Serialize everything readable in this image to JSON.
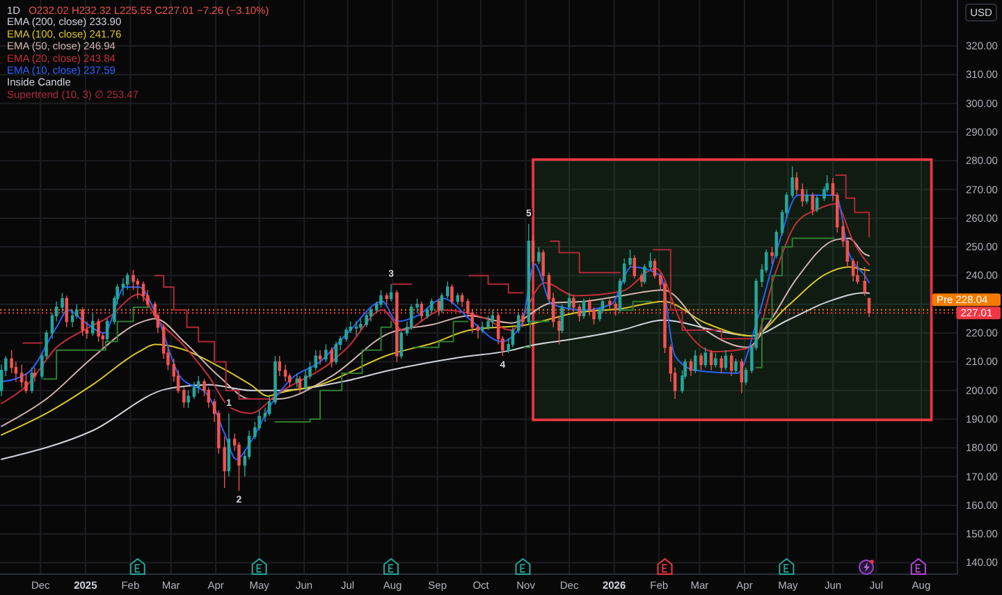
{
  "chart_data": {
    "type": "candlestick",
    "title": "1D",
    "subtitle": "O232.02 H232.32 L225.55 C227.01 −7.26 (−3.10%)",
    "ylabel": "USD",
    "x": [
      "2024-11-04",
      "2024-11-07",
      "2024-11-11",
      "2024-11-14",
      "2024-11-18",
      "2024-11-21",
      "2024-11-25",
      "2024-11-27",
      "2024-12-02",
      "2024-12-05",
      "2024-12-09",
      "2024-12-12",
      "2024-12-16",
      "2024-12-19",
      "2024-12-23",
      "2024-12-26",
      "2024-12-30",
      "2025-01-02",
      "2025-01-06",
      "2025-01-10",
      "2025-01-13",
      "2025-01-16",
      "2025-01-21",
      "2025-01-23",
      "2025-01-27",
      "2025-01-30",
      "2025-02-03",
      "2025-02-06",
      "2025-02-10",
      "2025-02-13",
      "2025-02-18",
      "2025-02-20",
      "2025-02-24",
      "2025-02-27",
      "2025-03-03",
      "2025-03-06",
      "2025-03-10",
      "2025-03-13",
      "2025-03-17",
      "2025-03-20",
      "2025-03-24",
      "2025-03-27",
      "2025-03-31",
      "2025-04-03",
      "2025-04-07",
      "2025-04-10",
      "2025-04-14",
      "2025-04-17",
      "2025-04-21",
      "2025-04-24",
      "2025-04-28",
      "2025-05-01",
      "2025-05-05",
      "2025-05-08",
      "2025-05-12",
      "2025-05-15",
      "2025-05-19",
      "2025-05-22",
      "2025-05-27",
      "2025-05-29",
      "2025-06-02",
      "2025-06-05",
      "2025-06-09",
      "2025-06-12",
      "2025-06-16",
      "2025-06-20",
      "2025-06-23",
      "2025-06-26",
      "2025-06-30",
      "2025-07-03",
      "2025-07-07",
      "2025-07-10",
      "2025-07-14",
      "2025-07-17",
      "2025-07-21",
      "2025-07-24",
      "2025-07-28",
      "2025-07-31",
      "2025-08-04",
      "2025-08-07",
      "2025-08-11",
      "2025-08-14",
      "2025-08-18",
      "2025-08-21",
      "2025-08-25",
      "2025-08-28",
      "2025-09-02",
      "2025-09-04",
      "2025-09-08",
      "2025-09-11",
      "2025-09-15",
      "2025-09-18",
      "2025-09-22",
      "2025-09-25",
      "2025-09-29",
      "2025-10-02",
      "2025-10-06",
      "2025-10-09",
      "2025-10-13",
      "2025-10-16",
      "2025-10-20",
      "2025-10-23",
      "2025-10-27",
      "2025-10-30",
      "2025-11-03",
      "2025-11-06",
      "2025-11-10",
      "2025-11-13",
      "2025-11-17",
      "2025-11-20",
      "2025-11-24",
      "2025-11-26",
      "2025-12-01",
      "2025-12-04",
      "2025-12-08",
      "2025-12-11",
      "2025-12-15",
      "2025-12-18",
      "2025-12-22",
      "2025-12-24",
      "2025-12-29",
      "2026-01-02",
      "2026-01-05",
      "2026-01-08",
      "2026-01-12",
      "2026-01-15",
      "2026-01-20",
      "2026-01-22",
      "2026-01-26",
      "2026-01-29",
      "2026-02-02",
      "2026-02-05",
      "2026-02-09",
      "2026-02-12",
      "2026-02-17",
      "2026-02-19",
      "2026-02-23",
      "2026-02-26",
      "2026-03-02",
      "2026-03-05",
      "2026-03-09",
      "2026-03-12",
      "2026-03-16",
      "2026-03-19",
      "2026-03-23",
      "2026-03-26",
      "2026-03-30",
      "2026-04-02",
      "2026-04-06",
      "2026-04-09",
      "2026-04-13",
      "2026-04-16",
      "2026-04-20",
      "2026-04-23",
      "2026-04-27",
      "2026-04-30",
      "2026-05-04",
      "2026-05-07",
      "2026-05-11",
      "2026-05-14",
      "2026-05-18",
      "2026-05-21",
      "2026-05-26",
      "2026-05-28",
      "2026-06-01",
      "2026-06-04",
      "2026-06-08",
      "2026-06-11",
      "2026-06-15",
      "2026-06-18",
      "2026-06-23",
      "2026-06-26"
    ],
    "ohlc": [
      [
        200,
        209,
        198,
        207
      ],
      [
        207,
        212,
        205,
        211
      ],
      [
        211,
        214,
        206,
        208
      ],
      [
        208,
        210,
        203,
        206
      ],
      [
        206,
        209,
        201,
        203
      ],
      [
        203,
        206,
        199,
        200
      ],
      [
        200,
        208,
        199,
        206
      ],
      [
        206,
        208,
        203,
        205
      ],
      [
        205,
        213,
        204,
        212
      ],
      [
        212,
        221,
        211,
        220
      ],
      [
        220,
        227,
        218,
        226
      ],
      [
        226,
        231,
        224,
        229
      ],
      [
        229,
        234,
        227,
        232
      ],
      [
        232,
        233,
        222,
        224
      ],
      [
        224,
        228,
        222,
        226
      ],
      [
        226,
        230,
        225,
        228
      ],
      [
        228,
        229,
        219,
        221
      ],
      [
        221,
        224,
        218,
        220
      ],
      [
        220,
        227,
        219,
        224
      ],
      [
        224,
        225,
        217,
        219
      ],
      [
        219,
        220,
        215,
        218
      ],
      [
        218,
        225,
        217,
        224
      ],
      [
        224,
        233,
        223,
        232
      ],
      [
        232,
        237,
        230,
        236
      ],
      [
        236,
        239,
        233,
        237
      ],
      [
        237,
        241,
        235,
        240
      ],
      [
        240,
        242,
        235,
        238
      ],
      [
        238,
        239,
        232,
        237
      ],
      [
        237,
        238,
        231,
        233
      ],
      [
        233,
        235,
        229,
        230
      ],
      [
        230,
        231,
        225,
        226
      ],
      [
        226,
        227,
        220,
        222
      ],
      [
        222,
        223,
        211,
        213
      ],
      [
        213,
        215,
        207,
        209
      ],
      [
        209,
        211,
        203,
        205
      ],
      [
        205,
        207,
        199,
        200
      ],
      [
        200,
        201,
        194,
        196
      ],
      [
        196,
        200,
        194,
        198
      ],
      [
        198,
        203,
        197,
        201
      ],
      [
        201,
        205,
        199,
        203
      ],
      [
        203,
        204,
        198,
        200
      ],
      [
        200,
        201,
        194,
        196
      ],
      [
        196,
        197,
        189,
        192
      ],
      [
        192,
        193,
        178,
        180
      ],
      [
        180,
        184,
        166,
        172
      ],
      [
        172,
        192,
        170,
        183
      ],
      [
        183,
        185,
        179,
        181
      ],
      [
        181,
        182,
        165,
        174
      ],
      [
        174,
        179,
        170,
        177
      ],
      [
        177,
        186,
        176,
        184
      ],
      [
        184,
        189,
        183,
        187
      ],
      [
        187,
        193,
        186,
        191
      ],
      [
        191,
        194,
        189,
        192
      ],
      [
        192,
        198,
        191,
        196
      ],
      [
        196,
        212,
        195,
        210
      ],
      [
        210,
        212,
        205,
        207
      ],
      [
        207,
        209,
        203,
        205
      ],
      [
        205,
        206,
        201,
        203
      ],
      [
        203,
        206,
        201,
        204
      ],
      [
        204,
        205,
        199,
        201
      ],
      [
        201,
        207,
        200,
        205
      ],
      [
        205,
        210,
        204,
        208
      ],
      [
        208,
        214,
        207,
        212
      ],
      [
        212,
        214,
        209,
        211
      ],
      [
        211,
        216,
        210,
        214
      ],
      [
        214,
        215,
        208,
        210
      ],
      [
        210,
        217,
        209,
        216
      ],
      [
        216,
        219,
        214,
        218
      ],
      [
        218,
        222,
        217,
        221
      ],
      [
        221,
        224,
        220,
        222
      ],
      [
        222,
        224,
        219,
        222
      ],
      [
        222,
        225,
        221,
        223
      ],
      [
        223,
        227,
        222,
        226
      ],
      [
        226,
        229,
        224,
        228
      ],
      [
        228,
        231,
        227,
        230
      ],
      [
        230,
        235,
        229,
        233
      ],
      [
        233,
        234,
        230,
        232
      ],
      [
        232,
        237,
        231,
        234
      ],
      [
        234,
        235,
        210,
        212
      ],
      [
        212,
        221,
        211,
        220
      ],
      [
        220,
        224,
        219,
        222
      ],
      [
        222,
        230,
        221,
        229
      ],
      [
        229,
        232,
        227,
        230
      ],
      [
        230,
        231,
        224,
        226
      ],
      [
        226,
        229,
        225,
        228
      ],
      [
        228,
        232,
        227,
        231
      ],
      [
        231,
        232,
        226,
        228
      ],
      [
        228,
        234,
        227,
        233
      ],
      [
        233,
        238,
        232,
        236
      ],
      [
        236,
        237,
        230,
        231
      ],
      [
        231,
        234,
        230,
        233
      ],
      [
        233,
        234,
        229,
        231
      ],
      [
        231,
        232,
        226,
        227
      ],
      [
        227,
        228,
        220,
        222
      ],
      [
        222,
        223,
        218,
        221
      ],
      [
        221,
        224,
        220,
        222
      ],
      [
        222,
        226,
        221,
        224
      ],
      [
        224,
        228,
        222,
        226
      ],
      [
        226,
        227,
        216,
        218
      ],
      [
        218,
        219,
        212,
        214
      ],
      [
        214,
        218,
        213,
        216
      ],
      [
        216,
        222,
        215,
        221
      ],
      [
        221,
        227,
        220,
        226
      ],
      [
        226,
        227,
        222,
        224
      ],
      [
        224,
        258,
        223,
        252
      ],
      [
        252,
        254,
        243,
        245
      ],
      [
        245,
        250,
        244,
        248
      ],
      [
        248,
        249,
        238,
        240
      ],
      [
        240,
        241,
        231,
        232
      ],
      [
        232,
        234,
        222,
        224
      ],
      [
        224,
        226,
        216,
        221
      ],
      [
        221,
        230,
        220,
        229
      ],
      [
        229,
        234,
        228,
        232
      ],
      [
        232,
        233,
        227,
        229
      ],
      [
        229,
        230,
        224,
        226
      ],
      [
        226,
        232,
        225,
        231
      ],
      [
        231,
        232,
        226,
        228
      ],
      [
        228,
        229,
        223,
        225
      ],
      [
        225,
        229,
        224,
        228
      ],
      [
        228,
        232,
        227,
        231
      ],
      [
        231,
        232,
        228,
        230
      ],
      [
        230,
        231,
        226,
        228
      ],
      [
        228,
        239,
        227,
        238
      ],
      [
        238,
        246,
        237,
        244
      ],
      [
        244,
        249,
        243,
        246
      ],
      [
        246,
        247,
        239,
        240
      ],
      [
        240,
        241,
        236,
        238
      ],
      [
        238,
        244,
        237,
        243
      ],
      [
        243,
        248,
        242,
        245
      ],
      [
        245,
        246,
        239,
        240
      ],
      [
        240,
        241,
        235,
        237
      ],
      [
        237,
        238,
        213,
        215
      ],
      [
        215,
        216,
        203,
        206
      ],
      [
        206,
        208,
        197,
        200
      ],
      [
        200,
        207,
        199,
        205
      ],
      [
        205,
        211,
        204,
        210
      ],
      [
        210,
        211,
        205,
        207
      ],
      [
        207,
        214,
        206,
        212
      ],
      [
        212,
        213,
        207,
        209
      ],
      [
        209,
        215,
        208,
        213
      ],
      [
        213,
        214,
        207,
        209
      ],
      [
        209,
        213,
        208,
        211
      ],
      [
        211,
        212,
        206,
        208
      ],
      [
        208,
        214,
        207,
        212
      ],
      [
        212,
        213,
        205,
        207
      ],
      [
        207,
        211,
        206,
        210
      ],
      [
        210,
        211,
        199,
        203
      ],
      [
        203,
        208,
        202,
        207
      ],
      [
        207,
        216,
        206,
        215
      ],
      [
        215,
        239,
        214,
        238
      ],
      [
        238,
        244,
        236,
        242
      ],
      [
        242,
        249,
        241,
        248
      ],
      [
        248,
        250,
        244,
        247
      ],
      [
        247,
        256,
        246,
        255
      ],
      [
        255,
        263,
        254,
        262
      ],
      [
        262,
        269,
        260,
        268
      ],
      [
        268,
        278,
        267,
        274
      ],
      [
        274,
        276,
        268,
        270
      ],
      [
        270,
        272,
        264,
        266
      ],
      [
        266,
        270,
        265,
        268
      ],
      [
        268,
        269,
        261,
        263
      ],
      [
        263,
        268,
        262,
        267
      ],
      [
        267,
        271,
        266,
        270
      ],
      [
        270,
        275,
        269,
        272
      ],
      [
        272,
        274,
        266,
        268
      ],
      [
        268,
        269,
        255,
        257
      ],
      [
        257,
        259,
        250,
        252
      ],
      [
        252,
        253,
        243,
        245
      ],
      [
        245,
        246,
        238,
        240
      ],
      [
        240,
        245,
        237,
        238
      ],
      [
        238,
        243,
        233,
        234.27
      ],
      [
        232.02,
        232.32,
        225.55,
        227.01
      ]
    ],
    "colors": [
      "#26a69a",
      "#26a69a",
      "#ef5350",
      "#ef5350",
      "#ef5350",
      "#ef5350",
      "#26a69a",
      "#ef5350",
      "#26a69a",
      "#26a69a",
      "#26a69a",
      "#26a69a",
      "#26a69a",
      "#ef5350",
      "#26a69a",
      "#26a69a",
      "#ef5350",
      "#ef5350",
      "#26a69a",
      "#ef5350",
      "#ef5350",
      "#26a69a",
      "#26a69a",
      "#26a69a",
      "#26a69a",
      "#26a69a",
      "#ef5350",
      "#ef5350",
      "#ef5350",
      "#ef5350",
      "#ef5350",
      "#ef5350",
      "#ef5350",
      "#ef5350",
      "#ef5350",
      "#ef5350",
      "#ef5350",
      "#26a69a",
      "#26a69a",
      "#26a69a",
      "#ef5350",
      "#ef5350",
      "#ef5350",
      "#ef5350",
      "#ef5350",
      "#26a69a",
      "#ef5350",
      "#ef5350",
      "#26a69a",
      "#26a69a",
      "#26a69a",
      "#26a69a",
      "#26a69a",
      "#26a69a",
      "#26a69a",
      "#ef5350",
      "#ef5350",
      "#ef5350",
      "#26a69a",
      "#ef5350",
      "#26a69a",
      "#26a69a",
      "#26a69a",
      "#ef5350",
      "#26a69a",
      "#ef5350",
      "#26a69a",
      "#26a69a",
      "#26a69a",
      "#26a69a",
      "#26a69a",
      "#26a69a",
      "#26a69a",
      "#26a69a",
      "#26a69a",
      "#26a69a",
      "#ef5350",
      "#26a69a",
      "#ef5350",
      "#26a69a",
      "#26a69a",
      "#26a69a",
      "#26a69a",
      "#ef5350",
      "#26a69a",
      "#26a69a",
      "#ef5350",
      "#26a69a",
      "#26a69a",
      "#ef5350",
      "#26a69a",
      "#ef5350",
      "#ef5350",
      "#ef5350",
      "#ef5350",
      "#26a69a",
      "#26a69a",
      "#26a69a",
      "#ef5350",
      "#ef5350",
      "#26a69a",
      "#26a69a",
      "#26a69a",
      "#ef5350",
      "#26a69a",
      "#ef5350",
      "#26a69a",
      "#ef5350",
      "#ef5350",
      "#ef5350",
      "#ef5350",
      "#26a69a",
      "#26a69a",
      "#ef5350",
      "#ef5350",
      "#26a69a",
      "#ef5350",
      "#ef5350",
      "#26a69a",
      "#26a69a",
      "#ef5350",
      "#ef5350",
      "#26a69a",
      "#26a69a",
      "#26a69a",
      "#ef5350",
      "#ef5350",
      "#26a69a",
      "#26a69a",
      "#ef5350",
      "#ef5350",
      "#ef5350",
      "#ef5350",
      "#ef5350",
      "#26a69a",
      "#26a69a",
      "#ef5350",
      "#26a69a",
      "#ef5350",
      "#26a69a",
      "#ef5350",
      "#26a69a",
      "#ef5350",
      "#26a69a",
      "#ef5350",
      "#26a69a",
      "#ef5350",
      "#26a69a",
      "#26a69a",
      "#26a69a",
      "#26a69a",
      "#26a69a",
      "#ef5350",
      "#26a69a",
      "#26a69a",
      "#26a69a",
      "#26a69a",
      "#ef5350",
      "#ef5350",
      "#26a69a",
      "#ef5350",
      "#26a69a",
      "#26a69a",
      "#26a69a",
      "#ef5350",
      "#ef5350",
      "#ef5350",
      "#ef5350",
      "#ef5350",
      "#ef5350",
      "#ef5350",
      "#ef5350"
    ],
    "series": [
      {
        "name": "EMA (200, close) 233.90",
        "type": "line",
        "color": "#d1d4dc",
        "x": [
          "2024-11-04",
          "2025-01-06",
          "2025-02-26",
          "2025-03-27",
          "2025-04-25",
          "2025-05-14",
          "2025-06-27",
          "2025-07-30",
          "2025-09-16",
          "2025-10-22",
          "2025-11-03",
          "2025-12-05",
          "2026-01-06",
          "2026-02-04",
          "2026-03-11",
          "2026-04-06",
          "2026-05-01",
          "2026-05-29",
          "2026-06-23",
          "2026-06-26"
        ],
        "values": [
          176,
          186,
          200.5,
          202,
          200,
          200,
          203,
          207,
          211.5,
          214,
          215.5,
          218,
          221,
          224.5,
          221,
          219,
          224.5,
          231,
          234,
          233.9
        ]
      },
      {
        "name": "EMA (100, close) 241.76",
        "type": "line",
        "color": "#d9c72c",
        "x": [
          "2024-11-04",
          "2024-12-05",
          "2025-01-06",
          "2025-02-07",
          "2025-02-18",
          "2025-03-11",
          "2025-03-28",
          "2025-04-25",
          "2025-05-07",
          "2025-05-14",
          "2025-06-12",
          "2025-07-30",
          "2025-08-29",
          "2025-09-23",
          "2025-11-03",
          "2025-12-05",
          "2026-01-06",
          "2026-02-04",
          "2026-03-05",
          "2026-04-06",
          "2026-05-01",
          "2026-05-27",
          "2026-06-12",
          "2026-06-23",
          "2026-06-26"
        ],
        "values": [
          184.5,
          192,
          202,
          213.5,
          216,
          214,
          210,
          202,
          198,
          199,
          202,
          212.5,
          216.5,
          221,
          223,
          227,
          228.5,
          231,
          223.5,
          219,
          229.5,
          240.5,
          243,
          242,
          241.8
        ]
      },
      {
        "name": "EMA (50, close) 246.94",
        "type": "line",
        "color": "#d4b5b2",
        "x": [
          "2024-11-04",
          "2024-12-05",
          "2025-01-06",
          "2025-02-07",
          "2025-02-18",
          "2025-03-11",
          "2025-04-03",
          "2025-04-25",
          "2025-05-14",
          "2025-06-20",
          "2025-07-30",
          "2025-08-29",
          "2025-09-23",
          "2025-10-22",
          "2025-11-19",
          "2025-12-11",
          "2026-01-06",
          "2026-02-04",
          "2026-03-05",
          "2026-04-03",
          "2026-04-17",
          "2026-05-07",
          "2026-06-03",
          "2026-06-12",
          "2026-06-23",
          "2026-06-26"
        ],
        "values": [
          187.5,
          197,
          211.5,
          223.5,
          225,
          216.5,
          205,
          197,
          197,
          205,
          220,
          223,
          226,
          223.5,
          230.5,
          231,
          233,
          235,
          221,
          215,
          223,
          239,
          252.5,
          253,
          247.5,
          246.9
        ]
      },
      {
        "name": "EMA (20, close) 243.84",
        "type": "line",
        "color": "#c62f3a",
        "x": [
          "2024-11-04",
          "2024-11-22",
          "2024-12-12",
          "2024-12-31",
          "2025-01-17",
          "2025-02-07",
          "2025-02-20",
          "2025-03-11",
          "2025-03-27",
          "2025-04-11",
          "2025-04-25",
          "2025-05-14",
          "2025-06-20",
          "2025-07-01",
          "2025-07-25",
          "2025-08-08",
          "2025-09-05",
          "2025-10-02",
          "2025-10-22",
          "2025-11-14",
          "2025-12-05",
          "2026-01-06",
          "2026-01-30",
          "2026-02-17",
          "2026-03-11",
          "2026-04-06",
          "2026-04-22",
          "2026-05-07",
          "2026-05-21",
          "2026-06-03",
          "2026-06-15",
          "2026-06-23",
          "2026-06-26"
        ],
        "values": [
          195.5,
          202,
          215,
          221,
          225.5,
          233.5,
          224.5,
          215,
          205,
          194,
          192,
          199,
          210,
          215,
          228,
          221,
          228,
          225.5,
          221,
          237.5,
          233,
          234.5,
          242.5,
          223,
          213.5,
          215,
          240.5,
          258.5,
          263,
          265,
          252,
          245.6,
          243.8
        ]
      },
      {
        "name": "EMA (10, close) 237.59",
        "type": "line",
        "color": "#2962ff",
        "x": [
          "2024-11-04",
          "2024-11-22",
          "2024-12-12",
          "2024-12-20",
          "2024-12-31",
          "2025-01-14",
          "2025-01-28",
          "2025-02-07",
          "2025-02-20",
          "2025-03-07",
          "2025-03-27",
          "2025-04-07",
          "2025-04-15",
          "2025-04-25",
          "2025-05-09",
          "2025-05-23",
          "2025-06-12",
          "2025-07-01",
          "2025-07-25",
          "2025-08-04",
          "2025-08-18",
          "2025-09-05",
          "2025-09-25",
          "2025-10-15",
          "2025-10-29",
          "2025-11-07",
          "2025-11-19",
          "2025-12-11",
          "2025-12-30",
          "2026-01-13",
          "2026-02-02",
          "2026-02-12",
          "2026-02-26",
          "2026-03-27",
          "2026-04-10",
          "2026-04-24",
          "2026-05-08",
          "2026-05-22",
          "2026-06-03",
          "2026-06-12",
          "2026-06-23",
          "2026-06-26"
        ],
        "values": [
          203,
          206,
          222,
          228,
          224,
          220,
          236,
          236,
          225,
          205,
          198,
          185,
          176,
          182,
          195,
          204,
          210,
          220,
          231,
          224,
          226,
          232,
          224,
          217,
          223,
          244,
          230,
          228,
          230,
          243,
          240,
          212,
          207,
          206,
          225,
          250,
          268,
          268,
          268,
          248,
          240,
          237.6
        ]
      },
      {
        "type": "step",
        "color": "#2e7d32",
        "x": [
          "2024-12-03",
          "2024-12-12",
          "2025-01-15",
          "2025-01-23",
          "2025-02-03",
          "2025-02-14",
          "2025-02-15",
          "2025-05-12",
          "2025-06-05",
          "2025-06-12",
          "2025-06-27",
          "2025-07-11",
          "2025-07-24",
          "2025-07-31",
          "2025-08-01",
          "2025-08-15",
          "2025-09-02",
          "2025-09-12",
          "2025-09-22",
          "2025-09-23",
          "2025-10-31",
          "2025-11-04",
          "2025-11-17",
          "2025-11-18",
          "2026-01-06",
          "2026-01-14",
          "2026-01-27",
          "2026-01-28",
          "2026-04-09",
          "2026-04-13",
          "2026-04-20",
          "2026-04-27",
          "2026-05-04",
          "2026-06-02"
        ],
        "values": [
          204,
          214,
          217,
          224,
          229,
          229,
          null,
          189,
          190,
          200,
          206,
          214,
          222,
          224,
          null,
          215,
          217,
          224,
          224,
          null,
          215,
          224,
          224,
          null,
          228,
          231,
          231,
          null,
          208,
          225,
          240,
          250,
          253,
          253
        ]
      },
      {
        "name": "Supertrend (10, 3) ∅ 253.47",
        "type": "step",
        "color": "#b0283a",
        "x": [
          "2024-11-19",
          "2024-12-02",
          "2024-12-03",
          "2025-02-18",
          "2025-02-24",
          "2025-03-03",
          "2025-03-12",
          "2025-03-20",
          "2025-03-31",
          "2025-04-08",
          "2025-04-17",
          "2025-05-09",
          "2025-05-10",
          "2025-08-01",
          "2025-08-14",
          "2025-08-15",
          "2025-09-23",
          "2025-10-06",
          "2025-10-20",
          "2025-10-30",
          "2025-10-31",
          "2025-11-18",
          "2025-11-24",
          "2025-12-08",
          "2026-01-05",
          "2026-01-06",
          "2026-01-28",
          "2026-02-09",
          "2026-02-17",
          "2026-03-16",
          "2026-04-08",
          "2026-04-09",
          "2026-06-03",
          "2026-06-10",
          "2026-06-16",
          "2026-06-26"
        ],
        "values": [
          216.5,
          216.5,
          null,
          240,
          236,
          228,
          222,
          217,
          210,
          200,
          197,
          197,
          null,
          237,
          237,
          null,
          240,
          237,
          234,
          234,
          null,
          252,
          248,
          241,
          241,
          null,
          249,
          228,
          221,
          218,
          218,
          null,
          275,
          267,
          262,
          253.5
        ]
      }
    ],
    "xlim": [
      "2024-11-03",
      "2026-08-26"
    ],
    "ylim": [
      136,
      336
    ],
    "xticks": [
      {
        "value": "2024-12-01",
        "label": "Dec"
      },
      {
        "value": "2025-01-01",
        "label": "2025"
      },
      {
        "value": "2025-02-01",
        "label": "Feb"
      },
      {
        "value": "2025-03-01",
        "label": "Mar"
      },
      {
        "value": "2025-04-01",
        "label": "Apr"
      },
      {
        "value": "2025-05-01",
        "label": "May"
      },
      {
        "value": "2025-06-01",
        "label": "Jun"
      },
      {
        "value": "2025-07-01",
        "label": "Jul"
      },
      {
        "value": "2025-08-01",
        "label": "Aug"
      },
      {
        "value": "2025-09-01",
        "label": "Sep"
      },
      {
        "value": "2025-10-01",
        "label": "Oct"
      },
      {
        "value": "2025-11-01",
        "label": "Nov"
      },
      {
        "value": "2025-12-01",
        "label": "Dec"
      },
      {
        "value": "2026-01-01",
        "label": "2026"
      },
      {
        "value": "2026-02-01",
        "label": "Feb"
      },
      {
        "value": "2026-03-01",
        "label": "Mar"
      },
      {
        "value": "2026-04-01",
        "label": "Apr"
      },
      {
        "value": "2026-05-01",
        "label": "May"
      },
      {
        "value": "2026-06-01",
        "label": "Jun"
      },
      {
        "value": "2026-07-01",
        "label": "Jul"
      },
      {
        "value": "2026-08-01",
        "label": "Aug"
      }
    ],
    "yticks": [
      {
        "value": 140,
        "label": "140.00"
      },
      {
        "value": 150,
        "label": "150.00"
      },
      {
        "value": 160,
        "label": "160.00"
      },
      {
        "value": 170,
        "label": "170.00"
      },
      {
        "value": 180,
        "label": "180.00"
      },
      {
        "value": 190,
        "label": "190.00"
      },
      {
        "value": 200,
        "label": "200.00"
      },
      {
        "value": 210,
        "label": "210.00"
      },
      {
        "value": 220,
        "label": "220.00"
      },
      {
        "value": 230,
        "label": null
      },
      {
        "value": 240,
        "label": "240.00"
      },
      {
        "value": 250,
        "label": "250.00"
      },
      {
        "value": 260,
        "label": "260.00"
      },
      {
        "value": 270,
        "label": "270.00"
      },
      {
        "value": 280,
        "label": "280.00"
      },
      {
        "value": 290,
        "label": "290.00"
      },
      {
        "value": 300,
        "label": "300.00"
      },
      {
        "value": 310,
        "label": "310.00"
      },
      {
        "value": 320,
        "label": "320.00"
      }
    ],
    "grid": true,
    "legend": "top left",
    "ref_lines": [
      {
        "axis": "y",
        "value": 228.04,
        "label": "Pre 228.04",
        "color": "#f57c00",
        "line_style": "dotted"
      },
      {
        "axis": "y",
        "value": 227.01,
        "label": "227.01",
        "color": "#f23645",
        "line_style": "dotted"
      }
    ],
    "bands": [
      {
        "axis": "x",
        "from": "2025-11-06",
        "to": "2026-08-08",
        "color": "#4caf50"
      }
    ],
    "annotations": [
      "Inside Candle",
      {
        "text": "1",
        "x": "2025-04-10",
        "y": 192
      },
      {
        "text": "2",
        "x": "2025-04-17",
        "y": 165
      },
      {
        "text": "3",
        "x": "2025-07-31",
        "y": 237
      },
      {
        "text": "4",
        "x": "2025-10-16",
        "y": 212
      },
      {
        "text": "5",
        "x": "2025-11-03",
        "y": 258
      }
    ]
  }
}
